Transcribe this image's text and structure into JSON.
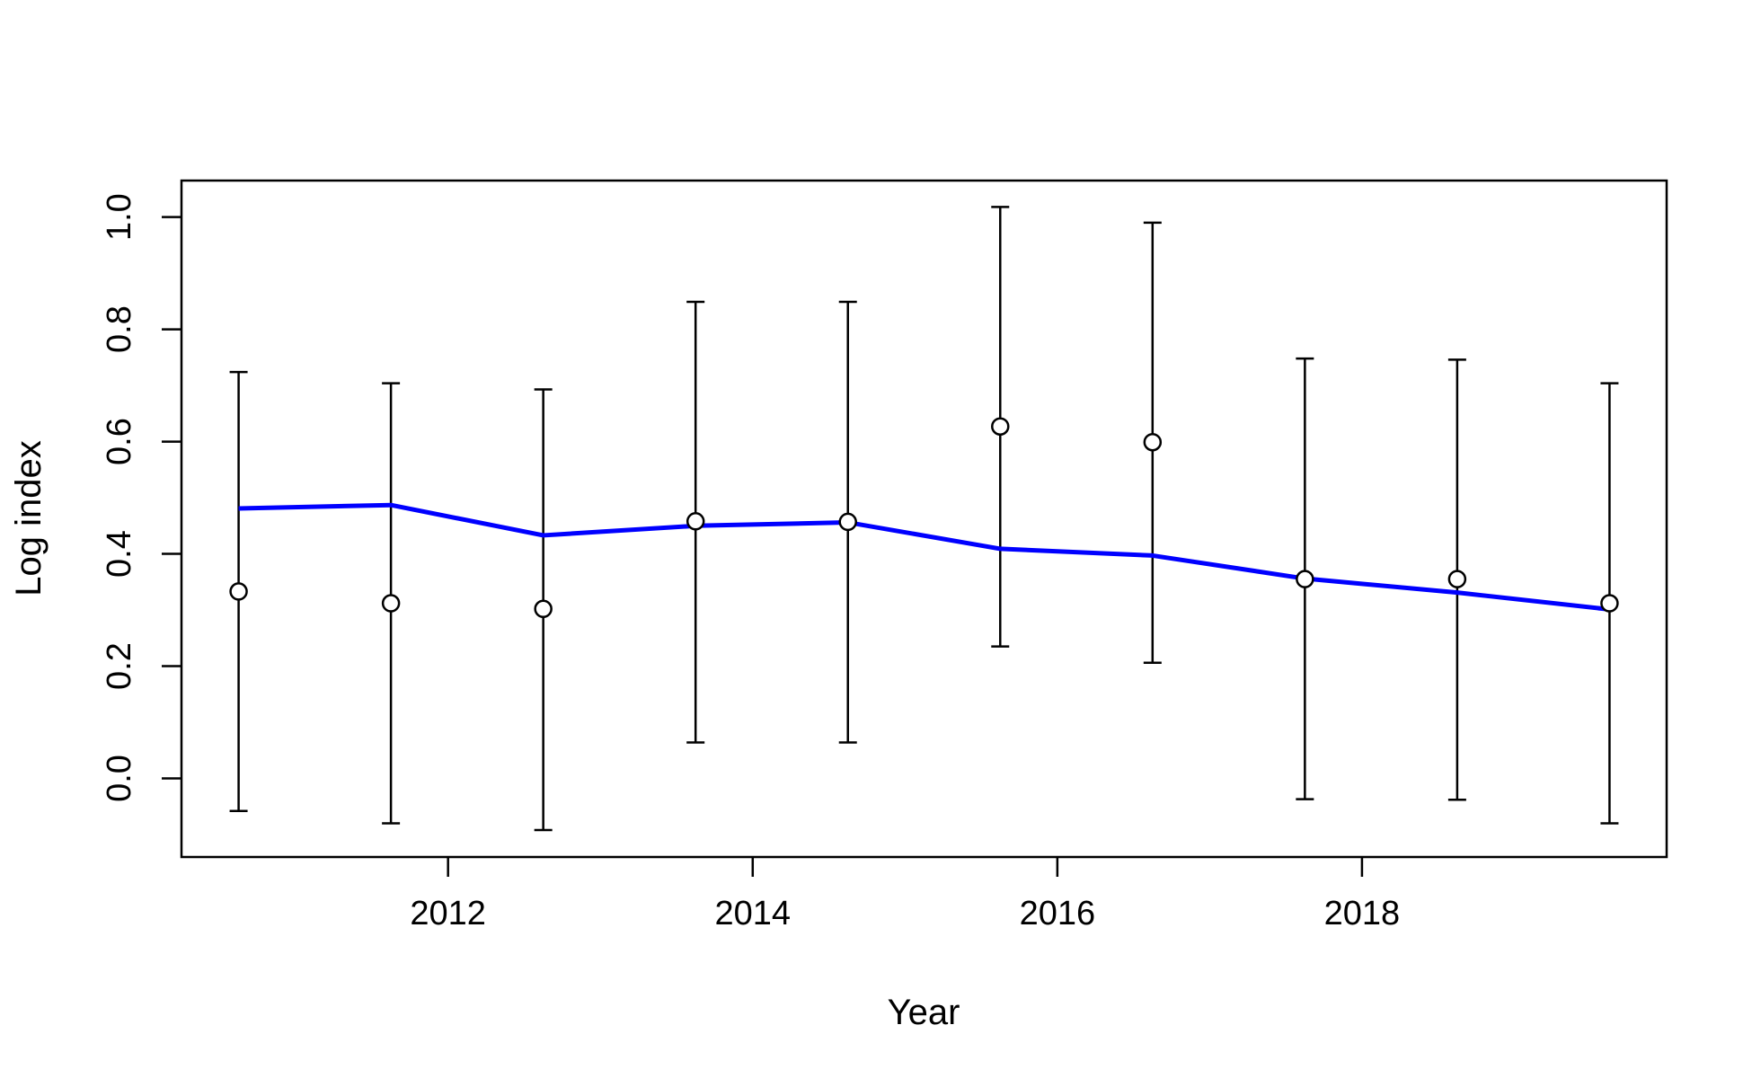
{
  "chart_data": {
    "type": "line",
    "title": "",
    "xlabel": "Year",
    "ylabel": "Log index",
    "xlim": [
      2010.25,
      2020.0
    ],
    "ylim": [
      -0.14,
      1.065
    ],
    "x_ticks": [
      2012,
      2014,
      2016,
      2018
    ],
    "x_tick_labels": [
      "2012",
      "2014",
      "2016",
      "2018"
    ],
    "y_ticks": [
      0.0,
      0.2,
      0.4,
      0.6,
      0.8,
      1.0
    ],
    "y_tick_labels": [
      "0.0",
      "0.2",
      "0.4",
      "0.6",
      "0.8",
      "1.0"
    ],
    "grid": false,
    "legend": "none",
    "observed": {
      "x": [
        2010.625,
        2011.625,
        2012.625,
        2013.625,
        2014.625,
        2015.625,
        2016.625,
        2017.625,
        2018.625,
        2019.625
      ],
      "values": [
        0.333,
        0.312,
        0.302,
        0.458,
        0.457,
        0.627,
        0.599,
        0.355,
        0.355,
        0.312
      ],
      "lower": [
        -0.058,
        -0.08,
        -0.092,
        0.064,
        0.064,
        0.235,
        0.206,
        -0.037,
        -0.038,
        -0.08
      ],
      "upper": [
        0.724,
        0.704,
        0.693,
        0.849,
        0.849,
        1.018,
        0.99,
        0.748,
        0.746,
        0.704
      ],
      "color": "#000000"
    },
    "fitted": {
      "x": [
        2010.625,
        2011.625,
        2012.625,
        2013.625,
        2014.625,
        2015.625,
        2016.625,
        2017.625,
        2018.625,
        2019.625
      ],
      "values": [
        0.481,
        0.487,
        0.433,
        0.45,
        0.456,
        0.409,
        0.397,
        0.356,
        0.331,
        0.301
      ],
      "color": "#0000ff"
    }
  }
}
